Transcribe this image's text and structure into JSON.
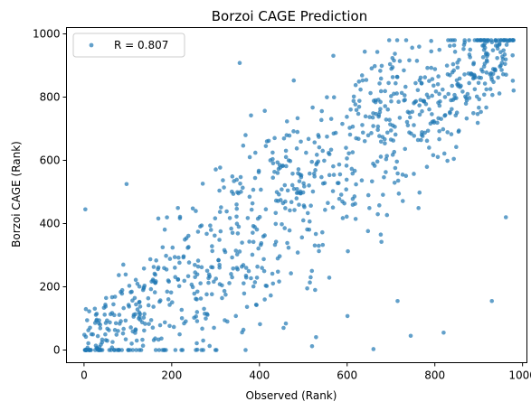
{
  "chart_data": {
    "type": "scatter",
    "title": "Borzoi CAGE Prediction",
    "xlabel": "Observed (Rank)",
    "ylabel": "Borzoi CAGE (Rank)",
    "xlim": [
      -40,
      1010
    ],
    "ylim": [
      -40,
      1020
    ],
    "xticks": [
      0,
      200,
      400,
      600,
      800,
      1000
    ],
    "yticks": [
      0,
      200,
      400,
      600,
      800,
      1000
    ],
    "grid": false,
    "legend_position": "upper-left",
    "series": [
      {
        "name": "R = 0.807",
        "color": "#1f77b4",
        "n_points": 980,
        "approx_correlation": 0.807,
        "value_range": [
          0,
          980
        ],
        "outliers": [
          {
            "x": 3,
            "y": 445
          },
          {
            "x": 97,
            "y": 525
          },
          {
            "x": 355,
            "y": 908
          },
          {
            "x": 520,
            "y": 12
          },
          {
            "x": 527,
            "y": 190
          },
          {
            "x": 660,
            "y": 3
          },
          {
            "x": 745,
            "y": 45
          },
          {
            "x": 820,
            "y": 55
          },
          {
            "x": 930,
            "y": 155
          },
          {
            "x": 962,
            "y": 420
          },
          {
            "x": 715,
            "y": 155
          },
          {
            "x": 455,
            "y": 70
          }
        ]
      }
    ]
  }
}
